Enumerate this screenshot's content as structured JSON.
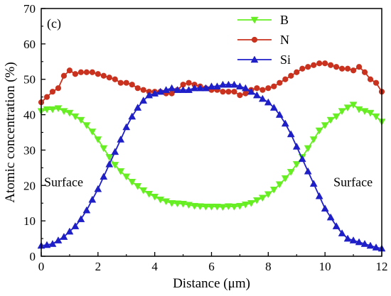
{
  "chart_data": {
    "type": "line",
    "panel_label": "(c)",
    "xlabel": "Distance (μm)",
    "ylabel": "Atomic concentration (%)",
    "xlim": [
      0,
      12
    ],
    "ylim": [
      0,
      70
    ],
    "xticks": [
      0,
      2,
      4,
      6,
      8,
      10,
      12
    ],
    "yticks": [
      0,
      10,
      20,
      30,
      40,
      50,
      60,
      70
    ],
    "grid": false,
    "legend_placement": "top-center",
    "annotations": [
      {
        "text": "Surface",
        "x": 0.1,
        "y": 21
      },
      {
        "text": "Surface",
        "x": 10.3,
        "y": 21
      }
    ],
    "series": [
      {
        "name": "B",
        "color": "#66ee22",
        "marker": "triangle-down",
        "x": [
          0,
          0.2,
          0.4,
          0.6,
          0.8,
          1,
          1.2,
          1.4,
          1.6,
          1.8,
          2,
          2.2,
          2.4,
          2.6,
          2.8,
          3,
          3.2,
          3.4,
          3.6,
          3.8,
          4,
          4.2,
          4.4,
          4.6,
          4.8,
          5,
          5.2,
          5.4,
          5.6,
          5.8,
          6,
          6.2,
          6.4,
          6.6,
          6.8,
          7,
          7.2,
          7.4,
          7.6,
          7.8,
          8,
          8.2,
          8.4,
          8.6,
          8.8,
          9,
          9.2,
          9.4,
          9.6,
          9.8,
          10,
          10.2,
          10.4,
          10.6,
          10.8,
          11,
          11.2,
          11.4,
          11.6,
          11.8,
          12
        ],
        "y": [
          41,
          41.5,
          41.5,
          41.8,
          41,
          40.5,
          39.5,
          38.5,
          37,
          35.2,
          33,
          30.5,
          28,
          25.8,
          24,
          22.5,
          21,
          19.8,
          18.6,
          17.6,
          16.8,
          16,
          15.5,
          15,
          14.9,
          14.8,
          14.5,
          14.2,
          14.1,
          14,
          14,
          14,
          13.9,
          14.1,
          14,
          14.2,
          14.6,
          15,
          15.8,
          16.5,
          17.5,
          18.8,
          20.3,
          22,
          23.8,
          26,
          28,
          30.5,
          33,
          35.5,
          37,
          38.5,
          39.5,
          41,
          42,
          42.8,
          41.5,
          41,
          40.5,
          39.5,
          38
        ]
      },
      {
        "name": "N",
        "color": "#c8321e",
        "marker": "circle",
        "x": [
          0,
          0.2,
          0.4,
          0.6,
          0.8,
          1,
          1.2,
          1.4,
          1.6,
          1.8,
          2,
          2.2,
          2.4,
          2.6,
          2.8,
          3,
          3.2,
          3.4,
          3.6,
          3.8,
          4,
          4.2,
          4.4,
          4.6,
          4.8,
          5,
          5.2,
          5.4,
          5.6,
          5.8,
          6,
          6.2,
          6.4,
          6.6,
          6.8,
          7,
          7.2,
          7.4,
          7.6,
          7.8,
          8,
          8.2,
          8.4,
          8.6,
          8.8,
          9,
          9.2,
          9.4,
          9.6,
          9.8,
          10,
          10.2,
          10.4,
          10.6,
          10.8,
          11,
          11.2,
          11.4,
          11.6,
          11.8,
          12
        ],
        "y": [
          43.5,
          45,
          46.5,
          47.5,
          51,
          52.5,
          51.5,
          52,
          52,
          52,
          51.5,
          51,
          50.5,
          50,
          49,
          49,
          48.5,
          47.5,
          47,
          46.5,
          46.5,
          46.5,
          46,
          46,
          47,
          48.5,
          49,
          48.5,
          48,
          47.5,
          47,
          47,
          46.5,
          46.5,
          46.5,
          45.5,
          46,
          47,
          47.5,
          47,
          47.5,
          48,
          49,
          50,
          51,
          52,
          53,
          53.5,
          54,
          54.5,
          54.5,
          54,
          53.5,
          53,
          53,
          52.5,
          53.5,
          52,
          50,
          49,
          46.5
        ]
      },
      {
        "name": "Si",
        "color": "#1f1fc8",
        "marker": "triangle-up",
        "x": [
          0,
          0.2,
          0.4,
          0.6,
          0.8,
          1,
          1.2,
          1.4,
          1.6,
          1.8,
          2,
          2.2,
          2.4,
          2.6,
          2.8,
          3,
          3.2,
          3.4,
          3.6,
          3.8,
          4,
          4.2,
          4.4,
          4.6,
          4.8,
          5,
          5.2,
          5.4,
          5.6,
          5.8,
          6,
          6.2,
          6.4,
          6.6,
          6.8,
          7,
          7.2,
          7.4,
          7.6,
          7.8,
          8,
          8.2,
          8.4,
          8.6,
          8.8,
          9,
          9.2,
          9.4,
          9.6,
          9.8,
          10,
          10.2,
          10.4,
          10.6,
          10.8,
          11,
          11.2,
          11.4,
          11.6,
          11.8,
          12
        ],
        "y": [
          3,
          3.2,
          3.5,
          4.5,
          5.5,
          7,
          8.5,
          10.5,
          13,
          16,
          19,
          22.5,
          26,
          29.5,
          33,
          36.5,
          39.5,
          42,
          44,
          45.5,
          46,
          46.5,
          47,
          47.5,
          47,
          47,
          47,
          47.5,
          47.5,
          47.5,
          48,
          48,
          48.5,
          48.5,
          48.5,
          48,
          47.5,
          46.5,
          45.5,
          44.5,
          43.5,
          42,
          40,
          37.5,
          34.5,
          31,
          27.5,
          24,
          20.5,
          17,
          13.5,
          11,
          8.5,
          6.5,
          5,
          4.5,
          4,
          3.5,
          3,
          2.5,
          2.2
        ]
      }
    ]
  }
}
